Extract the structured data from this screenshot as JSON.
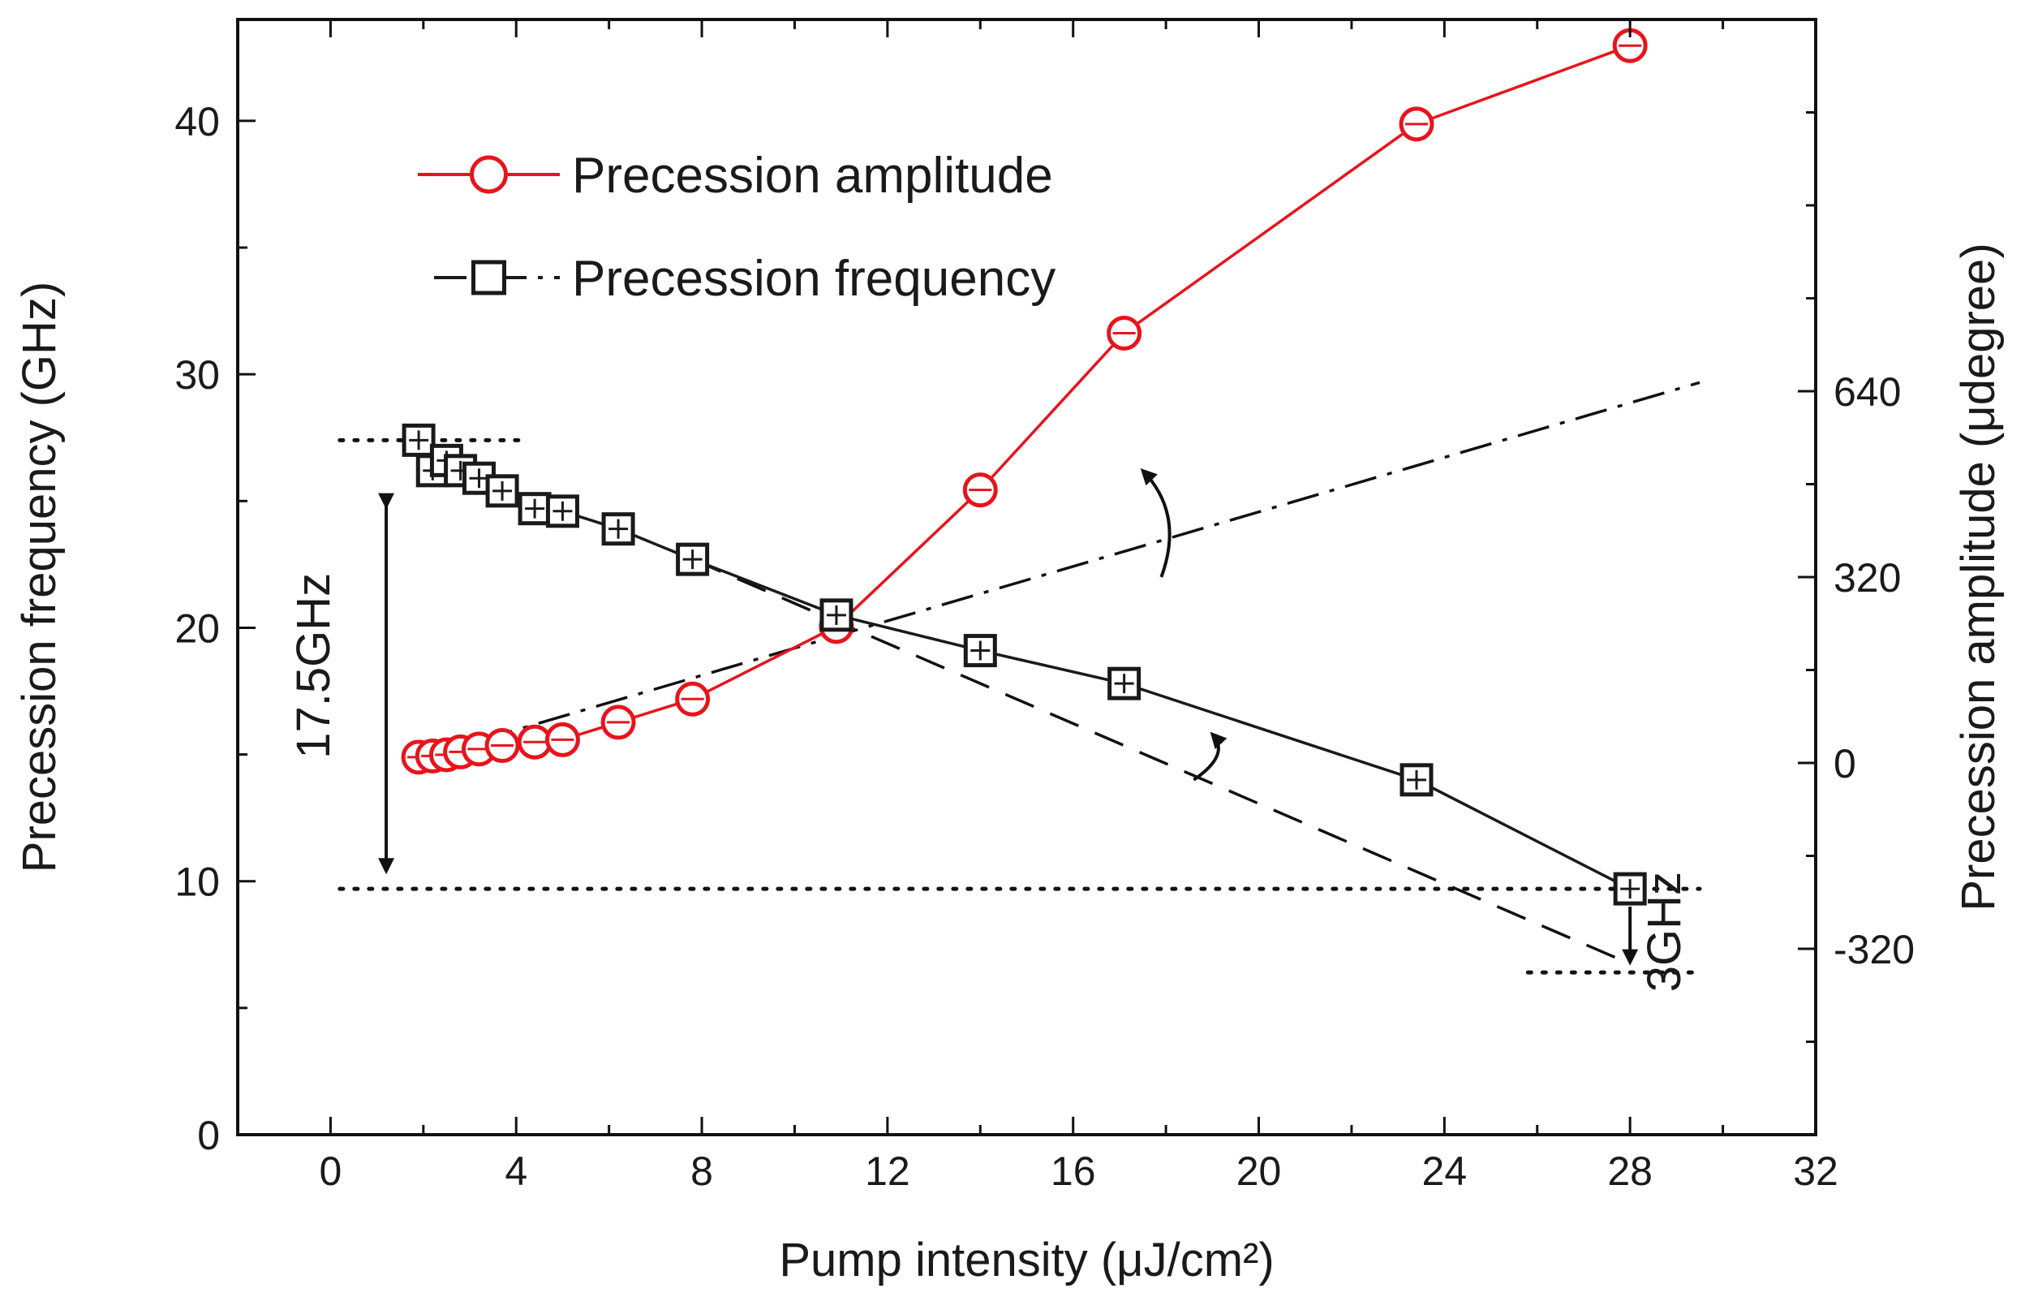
{
  "chart_data": {
    "type": "line",
    "title": "",
    "xlabel": "Pump intensity (μJ/cm²)",
    "ylabel_left": "Precession frequency  (GHz)",
    "ylabel_right": "Precession amplitude  (μdegree)",
    "xlim": [
      -2,
      32
    ],
    "ylim_left": [
      0,
      44
    ],
    "ylim_right": [
      -640,
      1280
    ],
    "x_ticks": [
      "0",
      "4",
      "8",
      "12",
      "16",
      "20",
      "24",
      "28",
      "32"
    ],
    "y_left_ticks": [
      "0",
      "10",
      "20",
      "30",
      "40"
    ],
    "y_right_ticks": [
      "-320",
      "0",
      "320",
      "640"
    ],
    "legend_position": "top-left",
    "series": [
      {
        "name": "Precession amplitude",
        "axis": "right",
        "color": "#e8141b",
        "marker": "circle",
        "x": [
          1.9,
          2.2,
          2.5,
          2.8,
          3.2,
          3.7,
          4.4,
          5.0,
          6.2,
          7.8,
          10.9,
          14.0,
          17.1,
          23.4,
          28.0
        ],
        "y": [
          10,
          12,
          14,
          19,
          24,
          30,
          36,
          40,
          70,
          110,
          235,
          470,
          740,
          1100,
          1235
        ]
      },
      {
        "name": "Precession frequency",
        "axis": "left",
        "color": "#1a1a1a",
        "marker": "square",
        "x": [
          1.9,
          2.2,
          2.5,
          2.8,
          3.2,
          3.7,
          4.4,
          5.0,
          6.2,
          7.8,
          10.9,
          14.0,
          17.1,
          23.4,
          28.0
        ],
        "y": [
          27.4,
          26.2,
          26.6,
          26.2,
          25.9,
          25.4,
          24.7,
          24.6,
          23.9,
          22.7,
          20.5,
          19.1,
          17.8,
          14.0,
          9.7
        ]
      }
    ],
    "guides": [
      {
        "name": "dash-dot-trend",
        "axis": "right",
        "style": "dash-dot",
        "from": [
          2.0,
          10
        ],
        "to": [
          29.5,
          655
        ]
      },
      {
        "name": "dashed-trend",
        "axis": "left",
        "style": "dashed",
        "from": [
          7.8,
          22.7
        ],
        "to": [
          27.8,
          6.9
        ]
      },
      {
        "name": "dotted-top",
        "axis": "left",
        "style": "dotted",
        "from": [
          0.2,
          27.4
        ],
        "to": [
          4.2,
          27.4
        ]
      },
      {
        "name": "dotted-mid",
        "axis": "left",
        "style": "dotted",
        "from": [
          0.2,
          9.7
        ],
        "to": [
          29.5,
          9.7
        ]
      },
      {
        "name": "dotted-low",
        "axis": "left",
        "style": "dotted",
        "from": [
          25.8,
          6.4
        ],
        "to": [
          29.5,
          6.4
        ]
      }
    ],
    "annotations": [
      {
        "text": "17.5GHz",
        "x": 1.2,
        "y": 18.5,
        "axis": "left"
      },
      {
        "text": "3GHz",
        "x": 30.3,
        "y": 8.0,
        "axis": "left"
      }
    ]
  }
}
